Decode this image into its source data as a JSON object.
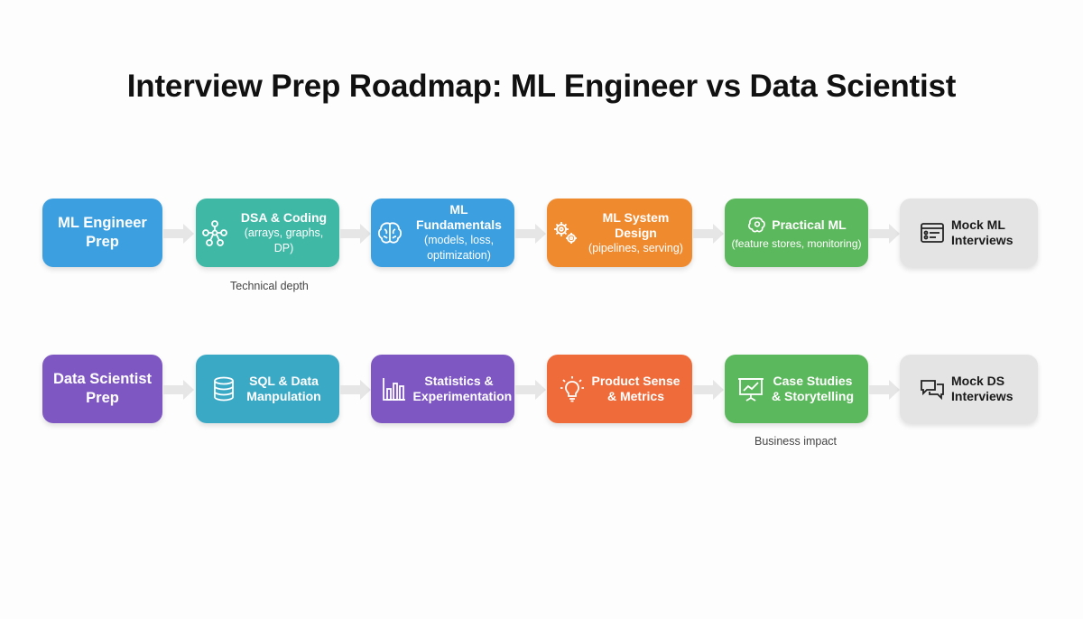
{
  "title": "Interview Prep Roadmap: ML Engineer vs Data Scientist",
  "rows": [
    {
      "start": "ML Engineer Prep",
      "steps": [
        {
          "icon": "graph-nodes-icon",
          "main": "DSA & Coding",
          "sub": "(arrays, graphs, DP)",
          "color": "#3fb8a5"
        },
        {
          "icon": "brain-icon",
          "main": "ML Fundamentals",
          "sub": "(models, loss, optimization)",
          "color": "#3b9fe0"
        },
        {
          "icon": "gears-icon",
          "main": "ML System Design",
          "sub": "(pipelines, serving)",
          "color": "#f08a2f"
        },
        {
          "icon": "brain-gear-icon",
          "main": "Practical ML",
          "sub": "(feature stores, monitoring)",
          "color": "#5cb85c"
        },
        {
          "icon": "interview-form-icon",
          "main": "Mock ML Interviews",
          "sub": "",
          "color": "#e4e4e4"
        }
      ],
      "note": "Technical depth"
    },
    {
      "start": "Data Scientist Prep",
      "steps": [
        {
          "icon": "database-icon",
          "main": "SQL & Data Manpulation",
          "sub": "",
          "color": "#3aa9c6"
        },
        {
          "icon": "bar-chart-icon",
          "main": "Statistics & Experimentation",
          "sub": "",
          "color": "#7e57c2"
        },
        {
          "icon": "lightbulb-icon",
          "main": "Product Sense & Metrics",
          "sub": "",
          "color": "#ef6b3a"
        },
        {
          "icon": "presentation-chart-icon",
          "main": "Case Studies & Storytelling",
          "sub": "",
          "color": "#5cb85c"
        },
        {
          "icon": "chat-bubbles-icon",
          "main": "Mock DS Interviews",
          "sub": "",
          "color": "#e4e4e4"
        }
      ],
      "note": "Business impact"
    }
  ],
  "colors": {
    "ml_start": "#3b9fe0",
    "ds_start": "#7e57c2",
    "arrow": "#e6e6e6"
  }
}
